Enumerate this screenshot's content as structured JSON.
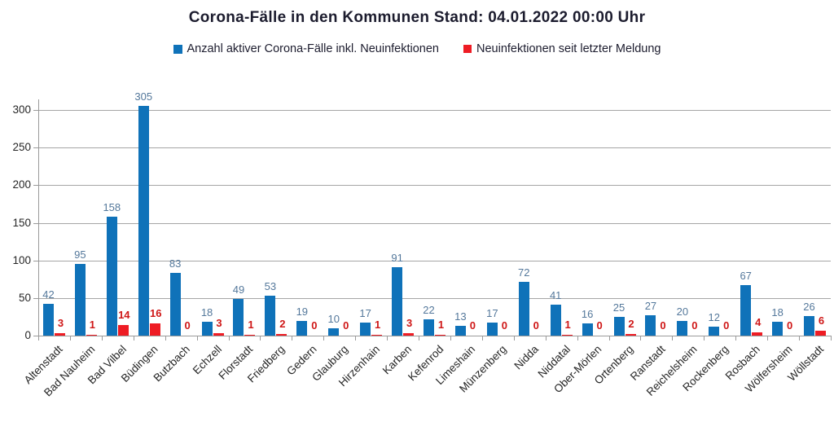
{
  "chart_data": {
    "type": "bar",
    "title": "Corona-Fälle in den Kommunen Stand: 04.01.2022 00:00 Uhr",
    "categories": [
      "Altenstadt",
      "Bad Nauheim",
      "Bad Vilbel",
      "Büdingen",
      "Butzbach",
      "Echzell",
      "Florstadt",
      "Friedberg",
      "Gedern",
      "Glauburg",
      "Hirzenhain",
      "Karben",
      "Kefenrod",
      "Limeshain",
      "Münzenberg",
      "Nidda",
      "Niddatal",
      "Ober-Mörlen",
      "Ortenberg",
      "Ranstadt",
      "Reichelsheim",
      "Rockenberg",
      "Rosbach",
      "Wölfersheim",
      "Wöllstadt"
    ],
    "series": [
      {
        "name": "Anzahl aktiver Corona-Fälle inkl. Neuinfektionen",
        "color": "#0f72b9",
        "label_color": "#54789b",
        "values": [
          42,
          95,
          158,
          305,
          83,
          18,
          49,
          53,
          19,
          10,
          17,
          91,
          22,
          13,
          17,
          72,
          41,
          16,
          25,
          27,
          20,
          12,
          67,
          18,
          26
        ]
      },
      {
        "name": "Neuinfektionen seit letzter Meldung",
        "color": "#ee1c24",
        "label_color": "#cf1717",
        "values": [
          3,
          1,
          14,
          16,
          0,
          3,
          1,
          2,
          0,
          0,
          1,
          3,
          1,
          0,
          0,
          0,
          1,
          0,
          2,
          0,
          0,
          0,
          4,
          0,
          6
        ]
      }
    ],
    "yticks": [
      0,
      50,
      100,
      150,
      200,
      250,
      300
    ],
    "ylim": [
      0,
      315
    ],
    "grid": true,
    "legend_position": "top",
    "xlabel": "",
    "ylabel": ""
  },
  "colors": {
    "background": "#ffffff",
    "gridline": "#a6a6a6",
    "axis": "#9a9a9a",
    "title_text": "#1c1c2e",
    "axis_text": "#262626"
  }
}
